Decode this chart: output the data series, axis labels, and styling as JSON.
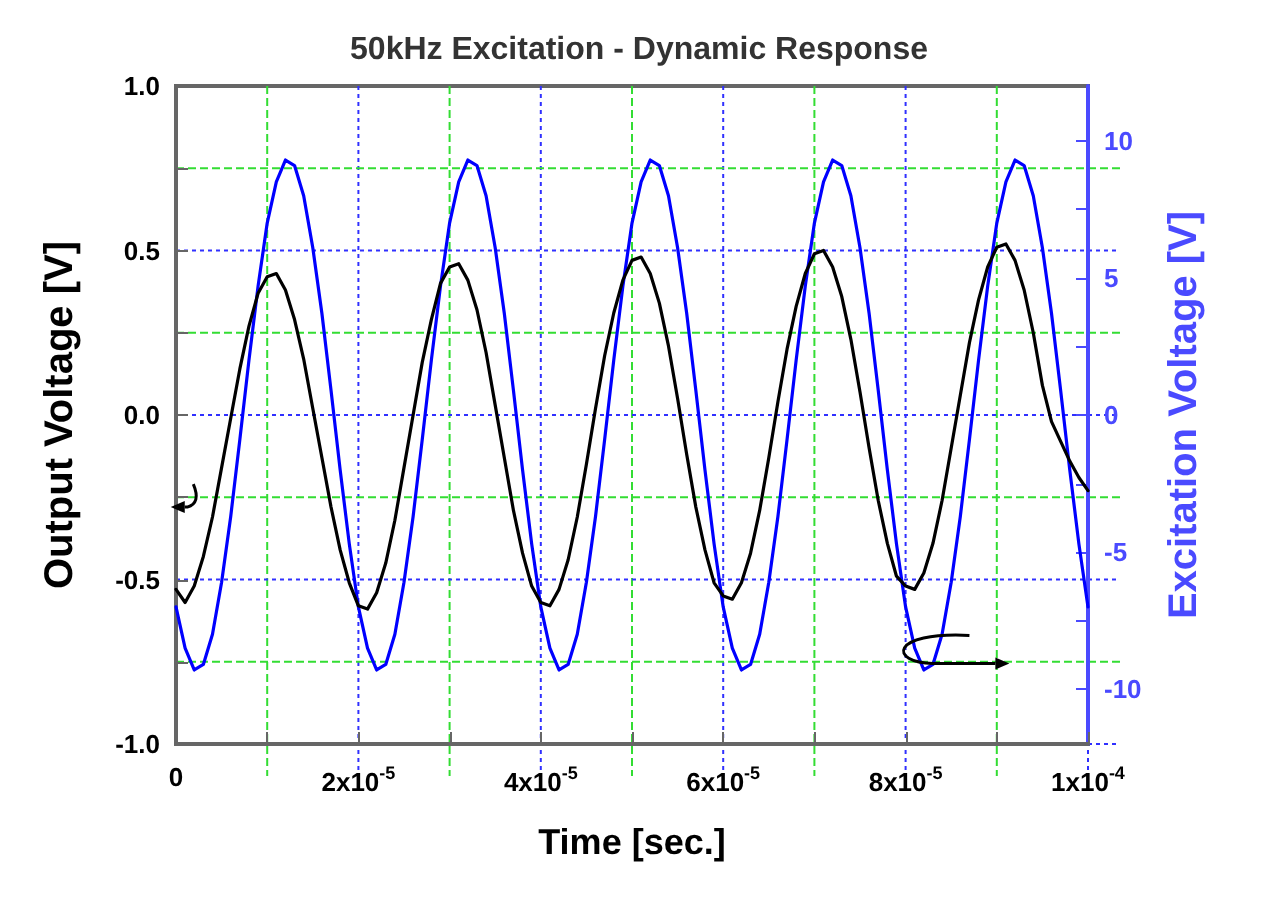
{
  "chart_data": {
    "type": "line",
    "title": "50kHz Excitation - Dynamic Response",
    "xlabel": "Time [sec.]",
    "ylabel": "Output Voltage [V]",
    "y2label": "Excitation Voltage [V]",
    "x": [
      0,
      1e-06,
      2e-06,
      3e-06,
      4e-06,
      5e-06,
      6e-06,
      7e-06,
      8e-06,
      9e-06,
      1e-05,
      1.1e-05,
      1.2e-05,
      1.3e-05,
      1.4e-05,
      1.5e-05,
      1.6e-05,
      1.7e-05,
      1.8e-05,
      1.9e-05,
      2e-05,
      2.1e-05,
      2.2e-05,
      2.3e-05,
      2.4e-05,
      2.5e-05,
      2.6e-05,
      2.7e-05,
      2.8e-05,
      2.9e-05,
      3e-05,
      3.1e-05,
      3.2e-05,
      3.3e-05,
      3.4e-05,
      3.5e-05,
      3.6e-05,
      3.7e-05,
      3.8e-05,
      3.9e-05,
      4e-05,
      4.1e-05,
      4.2e-05,
      4.3e-05,
      4.4e-05,
      4.5e-05,
      4.6e-05,
      4.7e-05,
      4.8e-05,
      4.9e-05,
      5e-05,
      5.1e-05,
      5.2e-05,
      5.3e-05,
      5.4e-05,
      5.5e-05,
      5.6e-05,
      5.7e-05,
      5.8e-05,
      5.9e-05,
      6e-05,
      6.1e-05,
      6.2e-05,
      6.3e-05,
      6.4e-05,
      6.5e-05,
      6.6e-05,
      6.7e-05,
      6.8e-05,
      6.9e-05,
      7e-05,
      7.1e-05,
      7.2e-05,
      7.3e-05,
      7.4e-05,
      7.5e-05,
      7.6e-05,
      7.7e-05,
      7.8e-05,
      7.9e-05,
      8e-05,
      8.1e-05,
      8.2e-05,
      8.3e-05,
      8.4e-05,
      8.5e-05,
      8.6e-05,
      8.7e-05,
      8.8e-05,
      8.9e-05,
      9e-05,
      9.1e-05,
      9.2e-05,
      9.3e-05,
      9.4e-05,
      9.5e-05,
      9.6e-05,
      9.7e-05,
      9.8e-05,
      9.9e-05,
      0.0001
    ],
    "series": [
      {
        "color": "#0000ff",
        "axis": "y2",
        "values": [
          -7.0,
          -8.5,
          -9.3,
          -9.1,
          -8.0,
          -6.1,
          -3.7,
          -0.9,
          2.0,
          4.7,
          7.0,
          8.5,
          9.3,
          9.1,
          8.0,
          6.1,
          3.7,
          0.9,
          -2.0,
          -4.7,
          -7.0,
          -8.5,
          -9.3,
          -9.1,
          -8.0,
          -6.1,
          -3.7,
          -0.9,
          2.0,
          4.7,
          7.0,
          8.5,
          9.3,
          9.1,
          8.0,
          6.1,
          3.7,
          0.9,
          -2.0,
          -4.7,
          -7.0,
          -8.5,
          -9.3,
          -9.1,
          -8.0,
          -6.1,
          -3.7,
          -0.9,
          2.0,
          4.7,
          7.0,
          8.5,
          9.3,
          9.1,
          8.0,
          6.1,
          3.7,
          0.9,
          -2.0,
          -4.7,
          -7.0,
          -8.5,
          -9.3,
          -9.1,
          -8.0,
          -6.1,
          -3.7,
          -0.9,
          2.0,
          4.7,
          7.0,
          8.5,
          9.3,
          9.1,
          8.0,
          6.1,
          3.7,
          0.9,
          -2.0,
          -4.7,
          -7.0,
          -8.5,
          -9.3,
          -9.1,
          -8.0,
          -6.1,
          -3.7,
          -0.9,
          2.0,
          4.7,
          7.0,
          8.5,
          9.3,
          9.1,
          8.0,
          6.1,
          3.7,
          0.9,
          -2.0,
          -4.7,
          -7.0
        ]
      },
      {
        "color": "#000000",
        "values": [
          -0.53,
          -0.57,
          -0.52,
          -0.43,
          -0.31,
          -0.16,
          -0.01,
          0.14,
          0.27,
          0.37,
          0.42,
          0.43,
          0.38,
          0.29,
          0.17,
          0.02,
          -0.13,
          -0.28,
          -0.41,
          -0.51,
          -0.58,
          -0.59,
          -0.54,
          -0.45,
          -0.32,
          -0.16,
          0.0,
          0.16,
          0.29,
          0.4,
          0.45,
          0.46,
          0.41,
          0.32,
          0.19,
          0.03,
          -0.13,
          -0.29,
          -0.42,
          -0.52,
          -0.57,
          -0.58,
          -0.53,
          -0.44,
          -0.31,
          -0.15,
          0.02,
          0.18,
          0.31,
          0.41,
          0.47,
          0.48,
          0.43,
          0.34,
          0.21,
          0.05,
          -0.12,
          -0.28,
          -0.41,
          -0.51,
          -0.55,
          -0.56,
          -0.51,
          -0.42,
          -0.29,
          -0.13,
          0.04,
          0.2,
          0.33,
          0.43,
          0.49,
          0.5,
          0.45,
          0.36,
          0.23,
          0.07,
          -0.1,
          -0.26,
          -0.39,
          -0.49,
          -0.52,
          -0.53,
          -0.48,
          -0.39,
          -0.26,
          -0.1,
          0.06,
          0.22,
          0.35,
          0.45,
          0.51,
          0.52,
          0.47,
          0.38,
          0.25,
          0.09,
          -0.02,
          -0.08,
          -0.14,
          -0.19,
          -0.23
        ]
      }
    ],
    "xlim": [
      0,
      0.0001
    ],
    "xticks": [
      0,
      {
        "value": 1e-05,
        "label": null
      },
      {
        "value": 2e-05,
        "label": "2x10$^{-5}$"
      },
      {
        "value": 3e-05,
        "label": null
      },
      {
        "value": 4e-05,
        "label": "4x10$^{-5}$"
      },
      {
        "value": 5e-05,
        "label": null
      },
      {
        "value": 6e-05,
        "label": "6x10$^{-5}$"
      },
      {
        "value": 7e-05,
        "label": null
      },
      {
        "value": 8e-05,
        "label": "8x10$^{-5}$"
      },
      {
        "value": 9e-05,
        "label": null
      },
      {
        "value": 0.0001,
        "label": "1x10$^{-4}$"
      }
    ],
    "ylim": [
      -1,
      1
    ],
    "yticks": [
      {
        "value": -1,
        "label": "-1.0"
      },
      {
        "value": -0.75,
        "label": null
      },
      {
        "value": -0.5,
        "label": "-0.5"
      },
      {
        "value": -0.25,
        "label": null
      },
      {
        "value": 0,
        "label": "0.0"
      },
      {
        "value": 0.25,
        "label": null
      },
      {
        "value": 0.5,
        "label": "0.5"
      },
      {
        "value": 0.75,
        "label": null
      },
      {
        "value": 1,
        "label": "1.0"
      }
    ],
    "y2lim": [
      -12,
      12
    ],
    "y2ticks": [
      -10,
      {
        "value": -7.5,
        "label": null
      },
      -5,
      {
        "value": -2.5,
        "label": null
      },
      0,
      {
        "value": 2.5,
        "label": null
      },
      5,
      {
        "value": 7.5,
        "label": null
      },
      10
    ],
    "grid": true,
    "marker": "none",
    "line_style": "solid"
  }
}
